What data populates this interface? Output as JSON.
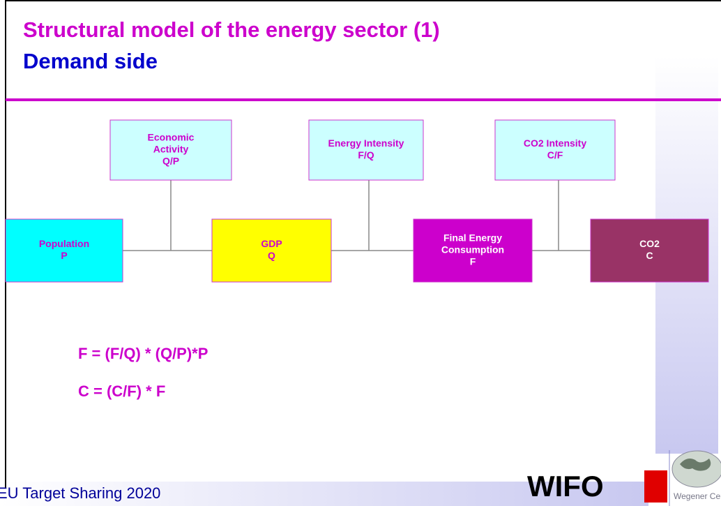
{
  "header": {
    "title": "Structural model of the energy sector (1)",
    "subtitle": "Demand side"
  },
  "drivers": [
    {
      "lines": [
        "Economic",
        "Activity",
        "Q/P"
      ]
    },
    {
      "lines": [
        "Energy Intensity",
        "F/Q"
      ]
    },
    {
      "lines": [
        "CO2 Intensity",
        "C/F"
      ]
    }
  ],
  "chain": [
    {
      "lines": [
        "Population",
        "P"
      ]
    },
    {
      "lines": [
        "GDP",
        "Q"
      ]
    },
    {
      "lines": [
        "Final Energy",
        "Consumption",
        "F"
      ]
    },
    {
      "lines": [
        "CO2",
        "C"
      ]
    }
  ],
  "formulas": [
    "F = (F/Q) * (Q/P)*P",
    "C = (C/F) * F"
  ],
  "footer": {
    "text": "EU Target Sharing 2020",
    "logo_wifo": "WIFO",
    "logo_wegener": "Wegener Center"
  }
}
